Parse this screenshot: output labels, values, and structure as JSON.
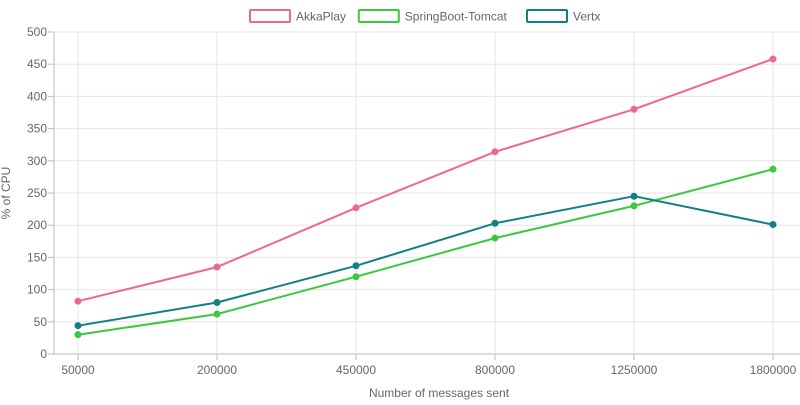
{
  "chart_data": {
    "type": "line",
    "title": "",
    "xlabel": "Number of messages sent",
    "ylabel": "% of CPU",
    "categories": [
      "50000",
      "200000",
      "450000",
      "800000",
      "1250000",
      "1800000"
    ],
    "ylim": [
      0,
      500
    ],
    "yticks": [
      0,
      50,
      100,
      150,
      200,
      250,
      300,
      350,
      400,
      450,
      500
    ],
    "grid": true,
    "legend_position": "top-center",
    "series": [
      {
        "name": "AkkaPlay",
        "color": "#f06887",
        "values": [
          82,
          135,
          227,
          314,
          380,
          458
        ]
      },
      {
        "name": "SpringBoot-Tomcat",
        "color": "#3cc83c",
        "values": [
          30,
          62,
          120,
          180,
          230,
          287
        ]
      },
      {
        "name": "Vertx",
        "color": "#128083",
        "values": [
          44,
          80,
          137,
          203,
          245,
          201
        ]
      }
    ]
  }
}
